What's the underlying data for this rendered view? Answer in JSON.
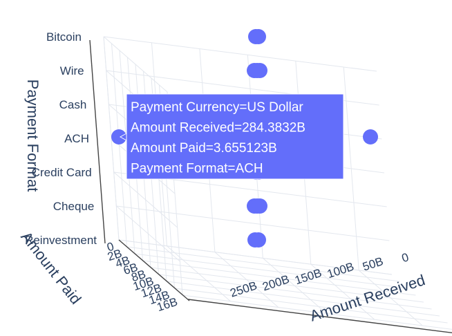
{
  "chart_data": {
    "type": "scatter3d",
    "x_axis": {
      "title": "Amount Received",
      "range": [
        0,
        284.3832
      ],
      "unit": "B",
      "tick_labels": [
        "0",
        "50B",
        "100B",
        "150B",
        "200B",
        "250B"
      ]
    },
    "y_axis": {
      "title": "Amount Paid",
      "range": [
        0,
        16
      ],
      "unit": "B",
      "tick_labels": [
        "0",
        "2B",
        "4B",
        "6B",
        "8B",
        "10B",
        "12B",
        "14B",
        "16B"
      ]
    },
    "z_axis": {
      "title": "Payment Format",
      "categories": [
        "Reinvestment",
        "Cheque",
        "Credit Card",
        "ACH",
        "Cash",
        "Wire",
        "Bitcoin"
      ]
    },
    "marker_color": "#636efa",
    "grid": true,
    "points": [
      {
        "x": 2,
        "y": 0.4,
        "z": "ACH"
      },
      {
        "x": 284.3832,
        "y": 3.655123,
        "z": "ACH"
      },
      {
        "x": 120,
        "y": 9,
        "z": "Bitcoin"
      },
      {
        "x": 128,
        "y": 9.6,
        "z": "Bitcoin"
      },
      {
        "x": 116,
        "y": 8.4,
        "z": "Wire"
      },
      {
        "x": 124,
        "y": 9.2,
        "z": "Wire"
      },
      {
        "x": 132,
        "y": 9.8,
        "z": "Wire"
      },
      {
        "x": 118,
        "y": 8.8,
        "z": "Cash"
      },
      {
        "x": 126,
        "y": 9.4,
        "z": "Cash"
      },
      {
        "x": 120,
        "y": 9,
        "z": "Credit Card"
      },
      {
        "x": 130,
        "y": 9.6,
        "z": "Credit Card"
      },
      {
        "x": 116,
        "y": 8.6,
        "z": "Cheque"
      },
      {
        "x": 124,
        "y": 9.2,
        "z": "Cheque"
      },
      {
        "x": 132,
        "y": 9.8,
        "z": "Cheque"
      },
      {
        "x": 118,
        "y": 8.8,
        "z": "Reinvestment"
      },
      {
        "x": 128,
        "y": 9.4,
        "z": "Reinvestment"
      }
    ],
    "hover": {
      "lines": [
        "Payment Currency=US Dollar",
        "Amount Received=284.3832B",
        "Amount Paid=3.655123B",
        "Payment Format=ACH"
      ]
    }
  }
}
